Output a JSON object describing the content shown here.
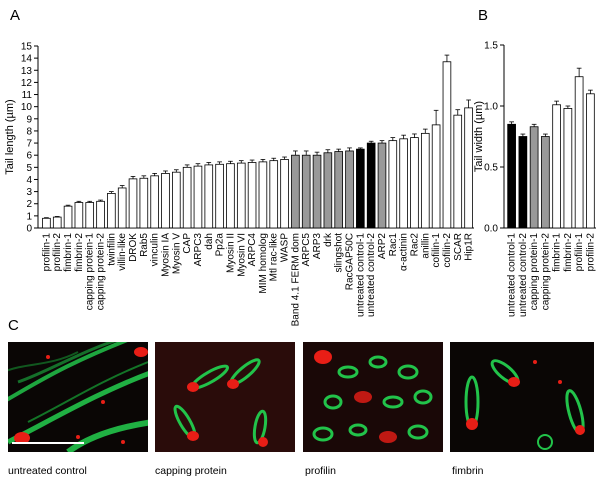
{
  "panels": {
    "a": "A",
    "b": "B",
    "c": "C"
  },
  "colors": {
    "white_bar": "#ffffff",
    "gray_bar": "#999999",
    "black_bar": "#000000",
    "actin": "#22c34a",
    "tip": "#e81e16",
    "background": "#0a0605"
  },
  "chart_data": [
    {
      "type": "bar",
      "ylabel": "Tail length (µm)",
      "ylim": [
        0,
        15
      ],
      "yticks": [
        0,
        1,
        2,
        3,
        4,
        5,
        6,
        7,
        8,
        9,
        10,
        11,
        12,
        13,
        14,
        15
      ],
      "grid": false,
      "legend": "none",
      "categories": [
        "profilin-1",
        "profilin-2",
        "fimbrin-1",
        "fimbrin-2",
        "capping protein-1",
        "capping protein-2",
        "twinfilin",
        "villin-like",
        "DROK",
        "Rab5",
        "vinculin",
        "Myosin IA",
        "Myosin V",
        "CAP",
        "ARPC3",
        "dah",
        "Pp2a",
        "Myosin II",
        "Myosin VI",
        "ARPC4",
        "MIM homolog",
        "Mtl rac-like",
        "WASP",
        "Band 4.1 FERM dom",
        "ARPC5",
        "ARP3",
        "drk",
        "slingshot",
        "RacGAP50C",
        "untreated control-1",
        "untreated control-2",
        "ARP2",
        "Rac1",
        "α-actinin",
        "Rac2",
        "anillin",
        "cofilin-1",
        "cofilin-2",
        "SCAR",
        "Hip1R"
      ],
      "values": [
        0.8,
        0.9,
        1.8,
        2.1,
        2.1,
        2.2,
        2.85,
        3.3,
        4.05,
        4.1,
        4.3,
        4.5,
        4.6,
        5.0,
        5.1,
        5.2,
        5.25,
        5.3,
        5.35,
        5.4,
        5.45,
        5.55,
        5.65,
        6.0,
        6.0,
        6.0,
        6.2,
        6.3,
        6.35,
        6.5,
        7.0,
        7.0,
        7.2,
        7.35,
        7.45,
        7.8,
        8.5,
        13.7,
        9.3,
        9.9
      ],
      "errors": [
        0.05,
        0.05,
        0.08,
        0.1,
        0.1,
        0.1,
        0.15,
        0.2,
        0.2,
        0.2,
        0.2,
        0.2,
        0.2,
        0.2,
        0.2,
        0.2,
        0.2,
        0.2,
        0.2,
        0.2,
        0.2,
        0.2,
        0.2,
        0.35,
        0.35,
        0.25,
        0.25,
        0.2,
        0.25,
        0.1,
        0.15,
        0.2,
        0.25,
        0.3,
        0.3,
        0.35,
        1.2,
        0.55,
        0.45,
        0.65
      ],
      "shading": [
        "white",
        "white",
        "white",
        "white",
        "white",
        "white",
        "white",
        "white",
        "white",
        "white",
        "white",
        "white",
        "white",
        "white",
        "white",
        "white",
        "white",
        "white",
        "white",
        "white",
        "white",
        "white",
        "white",
        "gray",
        "gray",
        "gray",
        "gray",
        "gray",
        "gray",
        "black",
        "black",
        "gray",
        "white",
        "white",
        "white",
        "white",
        "white",
        "white",
        "white",
        "white"
      ]
    },
    {
      "type": "bar",
      "ylabel": "Tail width  (µm)",
      "ylim": [
        0,
        1.5
      ],
      "yticks": [
        "0.0",
        "0.5",
        "1.0",
        "1.5"
      ],
      "grid": false,
      "legend": "none",
      "categories": [
        "untreated control-1",
        "untreated control-2",
        "capping protein-1",
        "capping protein-2",
        "fimbrin-1",
        "fimbrin-2",
        "profilin-1",
        "profilin-2"
      ],
      "values": [
        0.85,
        0.75,
        0.83,
        0.75,
        1.01,
        0.98,
        1.24,
        1.1
      ],
      "errors": [
        0.02,
        0.02,
        0.02,
        0.02,
        0.03,
        0.02,
        0.07,
        0.03
      ],
      "shading": [
        "black",
        "black",
        "gray",
        "gray",
        "white",
        "white",
        "white",
        "white"
      ]
    }
  ],
  "micrographs": [
    {
      "label": "untreated control"
    },
    {
      "label": "capping protein"
    },
    {
      "label": "profilin"
    },
    {
      "label": "fimbrin"
    }
  ]
}
